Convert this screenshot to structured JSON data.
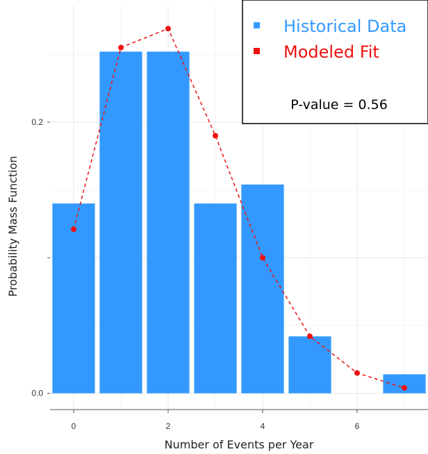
{
  "chart_data": {
    "type": "bar",
    "title": "",
    "xlabel": "Number of Events per Year",
    "ylabel": "Probability Mass Function",
    "xlim": [
      -0.5,
      7.5
    ],
    "ylim": [
      -0.012,
      0.286
    ],
    "x_ticks": [
      "0",
      "2",
      "4",
      "6"
    ],
    "y_ticks": [
      "0.0",
      "0.2"
    ],
    "grid": true,
    "legend_position": "top-right",
    "series": [
      {
        "name": "Historical Data",
        "kind": "bar",
        "color": "#3399ff",
        "x": [
          0,
          1,
          2,
          3,
          4,
          5,
          7
        ],
        "values": [
          0.14,
          0.252,
          0.252,
          0.14,
          0.154,
          0.042,
          0.014
        ]
      },
      {
        "name": "Modeled Fit",
        "kind": "line",
        "style": "dashed",
        "color": "#ee1111",
        "x": [
          0,
          1,
          2,
          3,
          4,
          5,
          6,
          7
        ],
        "values": [
          0.121,
          0.255,
          0.269,
          0.19,
          0.1,
          0.042,
          0.015,
          0.004
        ]
      }
    ],
    "annotation": "P-value = 0.56"
  }
}
